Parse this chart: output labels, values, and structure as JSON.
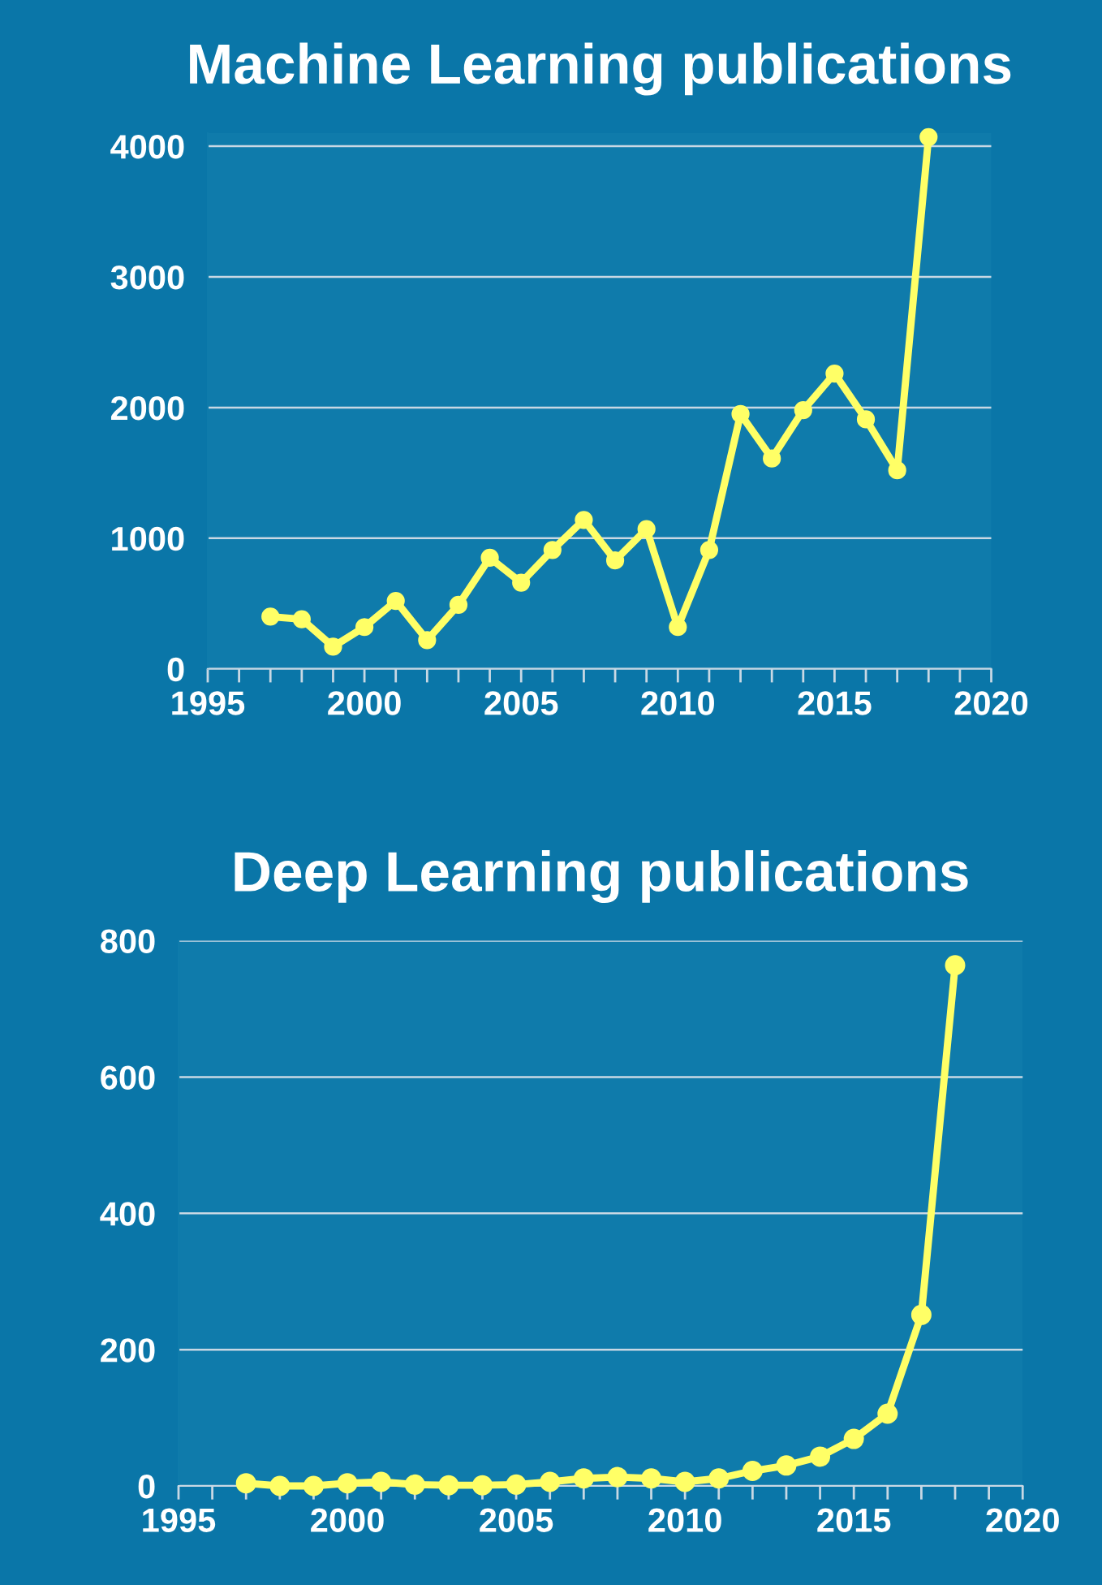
{
  "chart_data": [
    {
      "type": "line",
      "title": "Machine Learning publications",
      "x": [
        1997,
        1998,
        1999,
        2000,
        2001,
        2002,
        2003,
        2004,
        2005,
        2006,
        2007,
        2008,
        2009,
        2010,
        2011,
        2012,
        2013,
        2014,
        2015,
        2016,
        2017,
        2018
      ],
      "series": [
        {
          "color": "#ffff66",
          "values": [
            400,
            380,
            170,
            320,
            520,
            220,
            490,
            850,
            660,
            910,
            1140,
            830,
            1070,
            320,
            910,
            1950,
            1610,
            1980,
            2260,
            1910,
            1520,
            4070
          ]
        }
      ],
      "xlim": [
        1995,
        2020
      ],
      "xticks": [
        1995,
        2000,
        2005,
        2010,
        2015,
        2020
      ],
      "ylim": [
        0,
        4100
      ],
      "yticks": [
        0,
        1000,
        2000,
        3000,
        4000
      ],
      "grid": "y",
      "marker": "circle",
      "line_style": "solid"
    },
    {
      "type": "line",
      "title": "Deep Learning publications",
      "x": [
        1997,
        1998,
        1999,
        2000,
        2001,
        2002,
        2003,
        2004,
        2005,
        2006,
        2007,
        2008,
        2009,
        2010,
        2011,
        2012,
        2013,
        2014,
        2015,
        2016,
        2017,
        2018
      ],
      "series": [
        {
          "color": "#ffff66",
          "values": [
            4,
            0,
            0,
            4,
            6,
            2,
            1,
            1,
            2,
            6,
            11,
            13,
            11,
            6,
            11,
            22,
            30,
            43,
            69,
            106,
            251,
            764
          ]
        }
      ],
      "xlim": [
        1995,
        2020
      ],
      "xticks": [
        1995,
        2000,
        2005,
        2010,
        2015,
        2020
      ],
      "ylim": [
        0,
        800
      ],
      "yticks": [
        0,
        200,
        400,
        600,
        800
      ],
      "grid": "y",
      "marker": "circle",
      "line_style": "solid"
    }
  ]
}
